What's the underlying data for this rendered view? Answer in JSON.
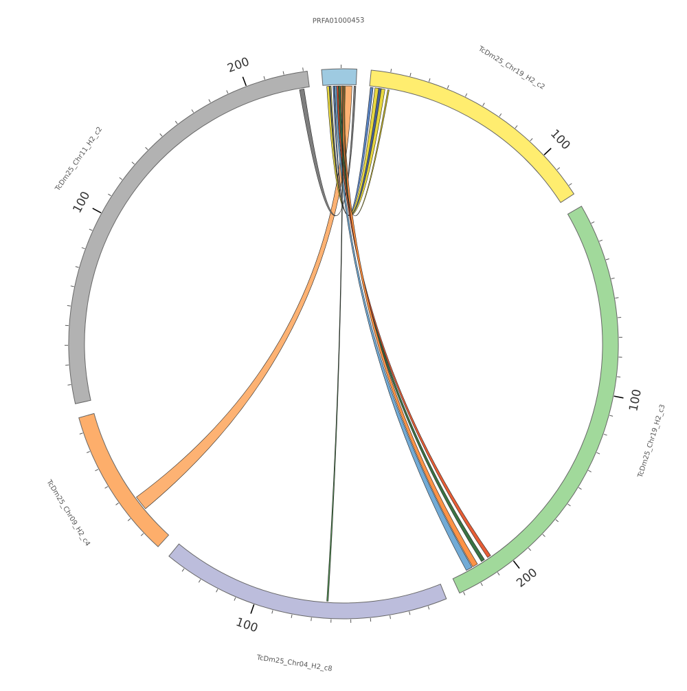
{
  "diagram": {
    "type": "circos",
    "ticks": {
      "minor_step": 10,
      "major_step": 100,
      "major_shown": [
        100,
        200
      ]
    },
    "segments": [
      {
        "id": "PRFA01000453",
        "label": "PRFA01000453",
        "length": 18,
        "color": "#9ecae1"
      },
      {
        "id": "c2y",
        "label": "TcDm25_Chr19_H2_c2",
        "length": 125,
        "color": "#ffed6f"
      },
      {
        "id": "c3",
        "label": "TcDm25_Chr19_H2_c3",
        "length": 232,
        "color": "#a1d99b"
      },
      {
        "id": "c8",
        "label": "TcDm25_Chr04_H2_c8",
        "length": 150,
        "color": "#bcbddc"
      },
      {
        "id": "c4",
        "label": "TcDm25_Chr09_H2_c4",
        "length": 78,
        "color": "#fdae6b"
      },
      {
        "id": "c2g",
        "label": "TcDm25_Chr11_H2_c2",
        "length": 232,
        "color": "#b2b2b2"
      }
    ],
    "links": [
      {
        "from": "PRFA01000453",
        "from_start": 12.1,
        "from_end": 15.8,
        "to": "c4",
        "to_start": 19.0,
        "to_end": 27.0,
        "color": "#fdae6b"
      },
      {
        "from": "PRFA01000453",
        "from_start": 16.9,
        "from_end": 17.9,
        "to": "c2g",
        "to_start": 226.5,
        "to_end": 229.0,
        "color": "#777777"
      },
      {
        "from": "PRFA01000453",
        "from_start": 2.1,
        "from_end": 4.5,
        "to": "c2y",
        "to_start": 3.0,
        "to_end": 8.5,
        "color": "#e6d536"
      },
      {
        "from": "PRFA01000453",
        "from_start": 3.4,
        "from_end": 4.0,
        "to": "c2y",
        "to_start": 5.0,
        "to_end": 6.5,
        "color": "#3f5a9a"
      },
      {
        "from": "PRFA01000453",
        "from_start": 5.5,
        "from_end": 6.2,
        "to": "c2y",
        "to_start": 0.5,
        "to_end": 2.0,
        "color": "#4f7bbf"
      },
      {
        "from": "PRFA01000453",
        "from_start": 8.5,
        "from_end": 9.5,
        "to": "c3",
        "to_start": 212.0,
        "to_end": 214.0,
        "color": "#2f6b3a"
      },
      {
        "from": "PRFA01000453",
        "from_start": 7.5,
        "from_end": 8.3,
        "to": "c3",
        "to_start": 208.0,
        "to_end": 210.0,
        "color": "#e5542b"
      },
      {
        "from": "PRFA01000453",
        "from_start": 9.8,
        "from_end": 11.4,
        "to": "c3",
        "to_start": 216.5,
        "to_end": 219.5,
        "color": "#fd8d3c"
      },
      {
        "from": "PRFA01000453",
        "from_start": 6.4,
        "from_end": 7.4,
        "to": "c3",
        "to_start": 220.0,
        "to_end": 223.5,
        "color": "#6aa6d4"
      },
      {
        "from": "PRFA01000453",
        "from_start": 10.5,
        "from_end": 10.9,
        "to": "c8",
        "to_start": 62.0,
        "to_end": 62.8,
        "color": "#4a8a4a"
      },
      {
        "from": "PRFA01000453",
        "from_start": 11.5,
        "from_end": 11.9,
        "to": "c2y",
        "to_start": 10.0,
        "to_end": 10.8,
        "color": "#c8b820"
      }
    ]
  }
}
